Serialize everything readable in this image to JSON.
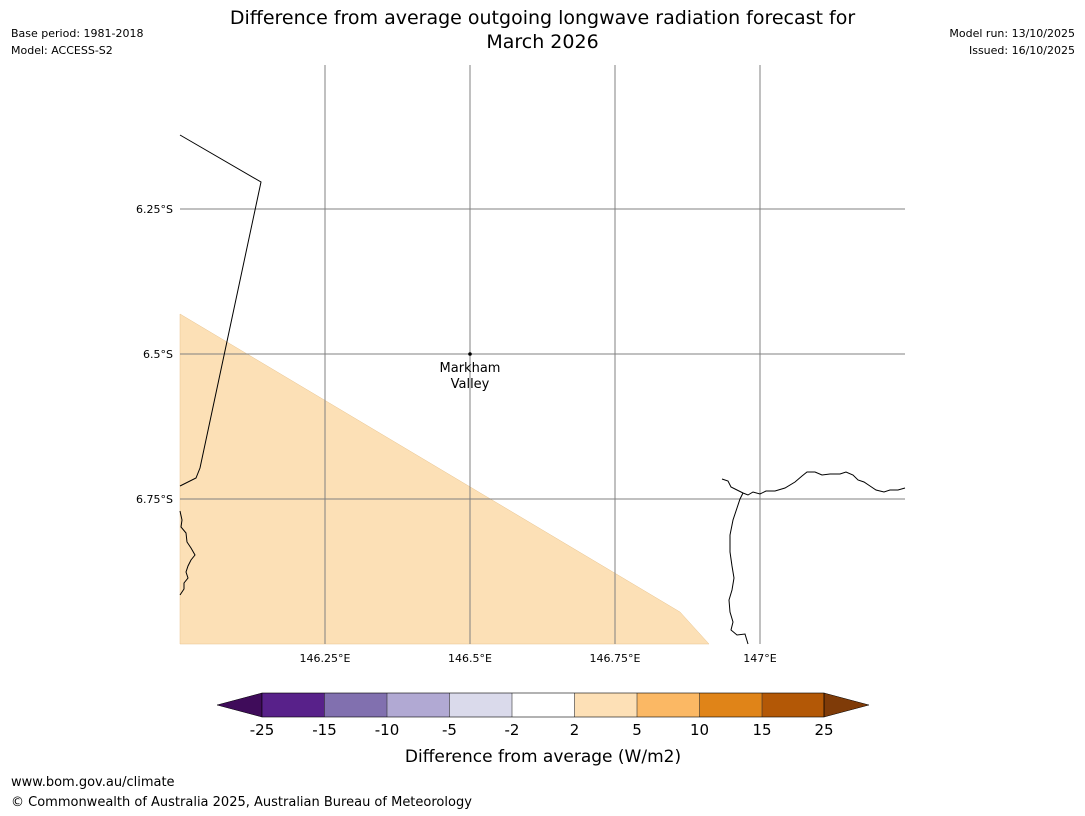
{
  "header": {
    "base_period": "Base period: 1981-2018",
    "model": "Model: ACCESS-S2",
    "title_line1": "Difference from average outgoing longwave radiation forecast for",
    "title_line2": "March 2026",
    "model_run": "Model run: 13/10/2025",
    "issued": "Issued: 16/10/2025"
  },
  "map": {
    "lon_ticks": [
      "146.25°E",
      "146.5°E",
      "146.75°E",
      "147°E"
    ],
    "lat_ticks": [
      "6.25°S",
      "6.5°S",
      "6.75°S"
    ],
    "extent": {
      "lon": [
        146.0,
        147.25
      ],
      "lat": [
        -6.0,
        -7.0
      ]
    },
    "place": {
      "name_line1": "Markham",
      "name_line2": "Valley",
      "lon": 146.5,
      "lat": -6.5
    },
    "shaded_band": "2 to 5",
    "colors": {
      "land_line": "#000000",
      "grid": "#808080",
      "shading": "#fce0b6"
    }
  },
  "colorbar": {
    "title": "Difference from average (W/m2)",
    "labels": [
      "-25",
      "-15",
      "-10",
      "-5",
      "-2",
      "2",
      "5",
      "10",
      "15",
      "25"
    ],
    "colors": [
      "#3f0c5a",
      "#58218a",
      "#8170af",
      "#b1a9d3",
      "#dadaeb",
      "#ffffff",
      "#fde0b6",
      "#fbb864",
      "#e08418",
      "#b35806",
      "#7f3b08"
    ]
  },
  "footer": {
    "url": "www.bom.gov.au/climate",
    "copyright": "© Commonwealth of Australia 2025, Australian Bureau of Meteorology"
  }
}
